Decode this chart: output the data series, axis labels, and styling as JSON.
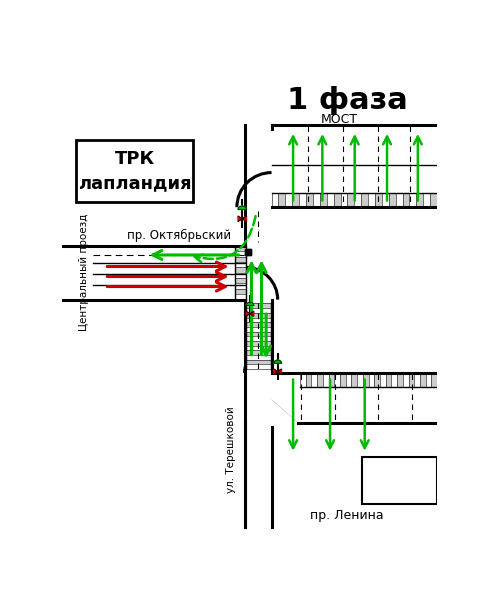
{
  "title": "1 фаза",
  "label_most": "МОСТ",
  "label_oct": "пр. Октябрьский",
  "label_central": "Центральный проезд",
  "label_ter": "ул. Терешковой",
  "label_len": "пр. Ленина",
  "label_trk": "ТРК\nлапландия",
  "bg_color": "#ffffff",
  "road_color": "#000000",
  "green": "#00bb00",
  "red": "#cc0000"
}
